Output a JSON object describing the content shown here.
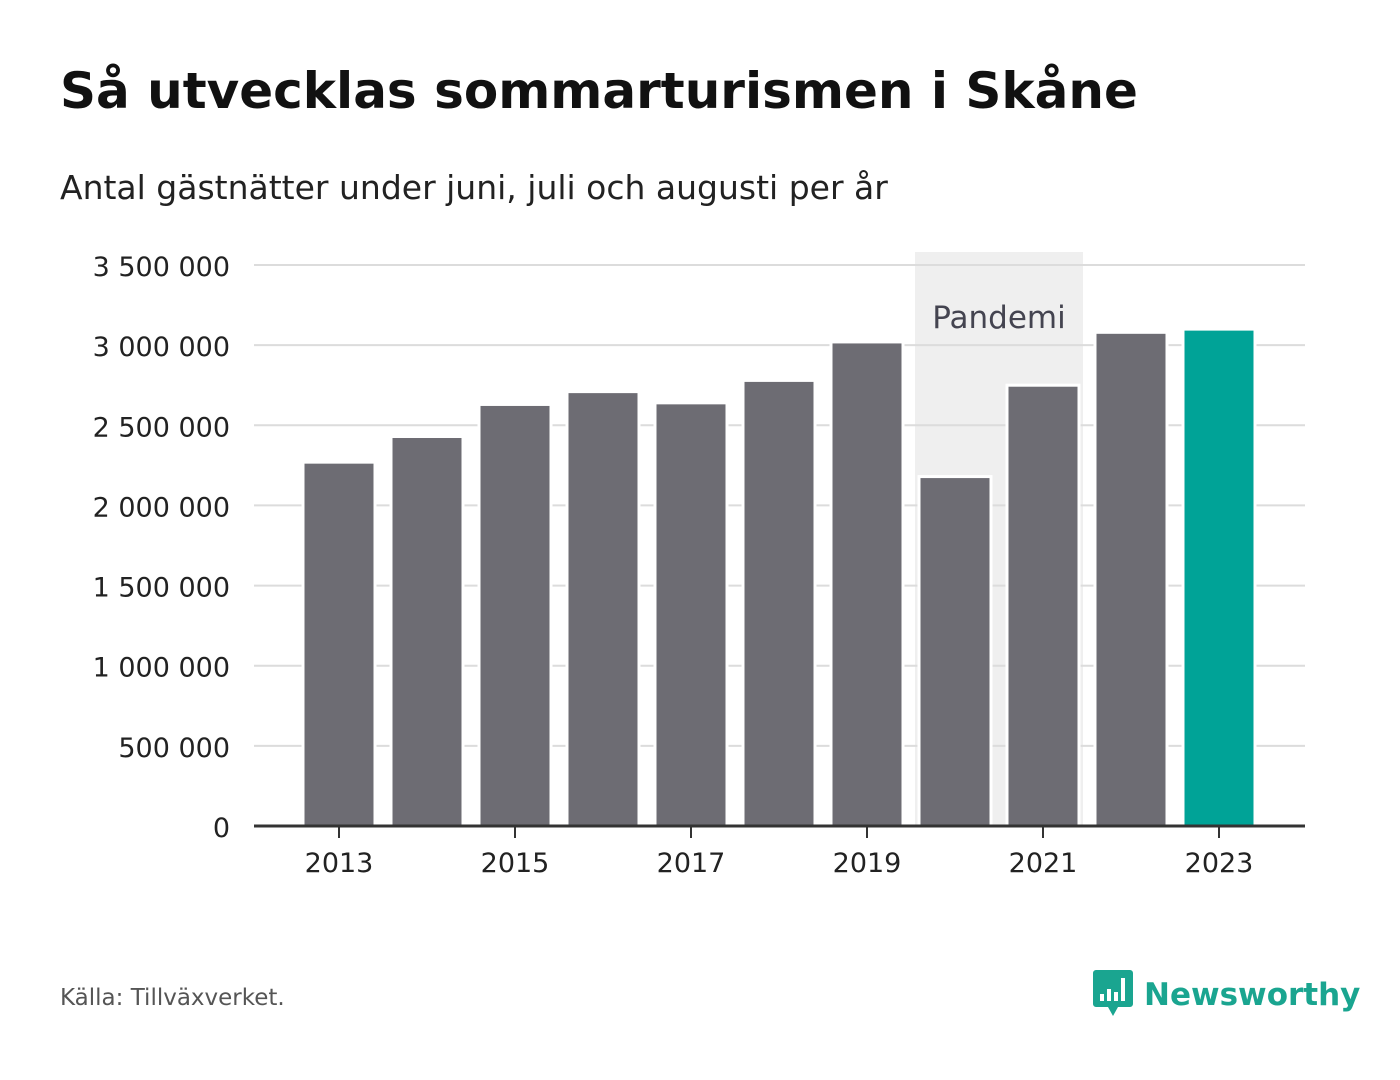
{
  "chart_data": {
    "type": "bar",
    "title": "Så utvecklas sommarturismen i Skåne",
    "subtitle": "Antal gästnätter under juni, juli och augusti per år",
    "categories": [
      "2013",
      "2014",
      "2015",
      "2016",
      "2017",
      "2018",
      "2019",
      "2020",
      "2021",
      "2022",
      "2023"
    ],
    "values": [
      2270000,
      2430000,
      2630000,
      2710000,
      2640000,
      2780000,
      3020000,
      2180000,
      2750000,
      3080000,
      3100000
    ],
    "x_tick_labels": [
      "2013",
      "2015",
      "2017",
      "2019",
      "2021",
      "2023"
    ],
    "y_tick_labels": [
      "0",
      "500 000",
      "1 000 000",
      "1 500 000",
      "2 000 000",
      "2 500 000",
      "3 000 000",
      "3 500 000"
    ],
    "ylim": [
      0,
      3500000
    ],
    "xlabel": "",
    "ylabel": "",
    "grid": true,
    "highlight": {
      "category": "2023",
      "color": "#00a397"
    },
    "bar_color": "#6d6c73",
    "annotation": {
      "label": "Pandemi",
      "from": "2020",
      "to": "2021",
      "color": "#efefef"
    }
  },
  "footer": {
    "source": "Källa: Tillväxverket.",
    "brand": "Newsworthy",
    "brand_color": "#1aa590",
    "brand_icon": "bar-chart-logo-icon"
  }
}
